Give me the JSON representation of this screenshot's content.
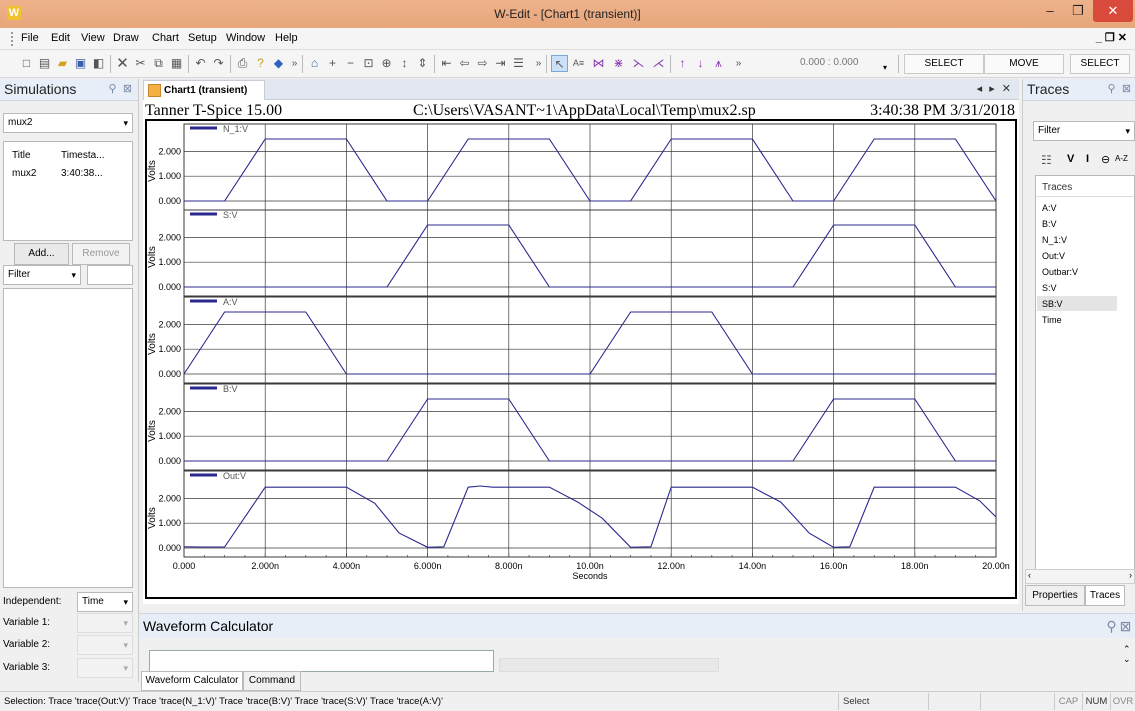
{
  "window": {
    "logo": "W",
    "title": "W-Edit - [Chart1 (transient)]",
    "min": "–",
    "max": "❐",
    "close": "✕"
  },
  "menu": {
    "items": [
      "File",
      "Edit",
      "View",
      "Draw",
      "Chart",
      "Setup",
      "Window",
      "Help"
    ],
    "mdi": "_ ❐ ✕"
  },
  "toolbar": {
    "coords": "0.000  :  0.000",
    "select": "SELECT",
    "move": "MOVE",
    "select2": "SELECT"
  },
  "simulations": {
    "title": "Simulations",
    "combo": "mux2",
    "col_title": "Title",
    "col_timestamp": "Timesta...",
    "row_title": "mux2",
    "row_time": "3:40:38...",
    "add": "Add...",
    "remove": "Remove",
    "filter": "Filter",
    "independent_label": "Independent:",
    "independent_value": "Time",
    "var1": "Variable 1:",
    "var2": "Variable 2:",
    "var3": "Variable 3:"
  },
  "doc": {
    "tab": "Chart1 (transient)",
    "controls": "◂ ▸ ✕"
  },
  "chart_header": {
    "left": "Tanner T-Spice 15.00",
    "center": "C:\\Users\\VASANT~1\\AppData\\Local\\Temp\\mux2.sp",
    "right": "3:40:38 PM 3/31/2018"
  },
  "traces_panel": {
    "title": "Traces",
    "filter": "Filter",
    "list_header": "Traces",
    "items": [
      "A:V",
      "B:V",
      "N_1:V",
      "Out:V",
      "Outbar:V",
      "S:V",
      "SB:V",
      "Time"
    ],
    "tab_properties": "Properties",
    "tab_traces": "Traces",
    "toolbar_v": "V",
    "toolbar_i": "I",
    "toolbar_az": "A-Z"
  },
  "calculator": {
    "title": "Waveform Calculator",
    "tab1": "Waveform Calculator",
    "tab2": "Command"
  },
  "status": {
    "text": "Selection: Trace 'trace(Out:V)' Trace 'trace(N_1:V)' Trace 'trace(B:V)' Trace 'trace(S:V)' Trace 'trace(A:V)'",
    "mode": "Select",
    "cap": "CAP",
    "num": "NUM",
    "ovr": "OVR"
  },
  "colors": {
    "trace": "#28288f",
    "grid": "#3a3a3a",
    "frame": "#000000"
  },
  "chart_data": {
    "type": "line",
    "xlabel": "Seconds",
    "ylabel": "Volts",
    "xlim": [
      0,
      20
    ],
    "x_unit": "n",
    "xticks": [
      "0.000",
      "2.000n",
      "4.000n",
      "6.000n",
      "8.000n",
      "10.00n",
      "12.00n",
      "14.00n",
      "16.00n",
      "18.00n",
      "20.00n"
    ],
    "yticks": [
      "0.000",
      "1.000",
      "2.000"
    ],
    "ylim": [
      0,
      2.7
    ],
    "panels": [
      {
        "name": "N_1:V",
        "points": [
          [
            0,
            0
          ],
          [
            1,
            0
          ],
          [
            2,
            2.5
          ],
          [
            4,
            2.5
          ],
          [
            5,
            0
          ],
          [
            6,
            0
          ],
          [
            7,
            2.5
          ],
          [
            9,
            2.5
          ],
          [
            10,
            0
          ],
          [
            11,
            0
          ],
          [
            12,
            2.5
          ],
          [
            14,
            2.5
          ],
          [
            15,
            0
          ],
          [
            16,
            0
          ],
          [
            17,
            2.5
          ],
          [
            19,
            2.5
          ],
          [
            20,
            0
          ]
        ]
      },
      {
        "name": "S:V",
        "points": [
          [
            0,
            0
          ],
          [
            5,
            0
          ],
          [
            6,
            2.5
          ],
          [
            8,
            2.5
          ],
          [
            9,
            0
          ],
          [
            15,
            0
          ],
          [
            16,
            2.5
          ],
          [
            18,
            2.5
          ],
          [
            19,
            0
          ],
          [
            20,
            0
          ]
        ]
      },
      {
        "name": "A:V",
        "points": [
          [
            0,
            0
          ],
          [
            1,
            2.5
          ],
          [
            3,
            2.5
          ],
          [
            4,
            0
          ],
          [
            10,
            0
          ],
          [
            11,
            2.5
          ],
          [
            13,
            2.5
          ],
          [
            14,
            0
          ],
          [
            20,
            0
          ]
        ]
      },
      {
        "name": "B:V",
        "points": [
          [
            0,
            0
          ],
          [
            5,
            0
          ],
          [
            6,
            2.5
          ],
          [
            8,
            2.5
          ],
          [
            9,
            0
          ],
          [
            15,
            0
          ],
          [
            16,
            2.5
          ],
          [
            18,
            2.5
          ],
          [
            19,
            0
          ],
          [
            20,
            0
          ]
        ]
      },
      {
        "name": "Out:V",
        "points": [
          [
            0,
            0.05
          ],
          [
            0.5,
            0.04
          ],
          [
            1,
            0.04
          ],
          [
            2,
            2.45
          ],
          [
            4,
            2.45
          ],
          [
            4.7,
            1.8
          ],
          [
            5.3,
            0.6
          ],
          [
            6,
            0.03
          ],
          [
            6.4,
            0.05
          ],
          [
            7,
            2.45
          ],
          [
            7.3,
            2.5
          ],
          [
            7.6,
            2.45
          ],
          [
            9,
            2.45
          ],
          [
            9.7,
            1.85
          ],
          [
            10.3,
            1.2
          ],
          [
            11,
            0.03
          ],
          [
            11.5,
            0.05
          ],
          [
            12,
            2.45
          ],
          [
            14,
            2.45
          ],
          [
            14.7,
            1.85
          ],
          [
            15.4,
            0.6
          ],
          [
            16,
            0.03
          ],
          [
            16.4,
            0.05
          ],
          [
            17,
            2.45
          ],
          [
            19,
            2.45
          ],
          [
            19.6,
            1.9
          ],
          [
            20,
            1.25
          ]
        ]
      }
    ]
  }
}
